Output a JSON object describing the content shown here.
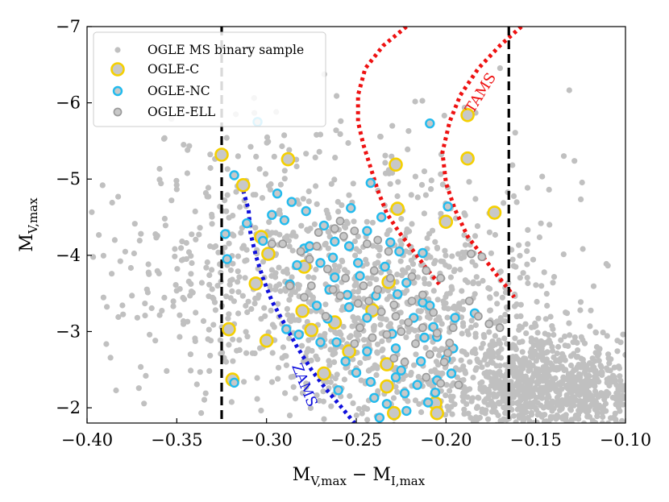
{
  "chart_data": {
    "type": "scatter",
    "xlabel": "M_V,max − M_I,max",
    "ylabel": "M_V,max",
    "xlim": [
      -0.4,
      -0.1
    ],
    "ylim": [
      -1.8,
      -7.0
    ],
    "y_inverted": true,
    "x_ticks": [
      -0.4,
      -0.35,
      -0.3,
      -0.25,
      -0.2,
      -0.15,
      -0.1
    ],
    "x_tick_labels": [
      "−0.40",
      "−0.35",
      "−0.30",
      "−0.25",
      "−0.20",
      "−0.15",
      "−0.10"
    ],
    "y_ticks": [
      -7,
      -6,
      -5,
      -4,
      -3,
      -2
    ],
    "y_tick_labels": [
      "−7",
      "−6",
      "−5",
      "−4",
      "−3",
      "−2"
    ],
    "legend_position": "top-left",
    "legend": [
      {
        "label": "OGLE MS binary sample",
        "marker": "small-grey-dot"
      },
      {
        "label": "OGLE-C",
        "marker": "yellow-ring"
      },
      {
        "label": "OGLE-NC",
        "marker": "cyan-ring"
      },
      {
        "label": "OGLE-ELL",
        "marker": "grey-ring"
      }
    ],
    "vertical_lines": [
      {
        "x": -0.325,
        "style": "dashed",
        "color": "#000000"
      },
      {
        "x": -0.165,
        "style": "dashed",
        "color": "#000000"
      }
    ],
    "curves": [
      {
        "name": "ZAMS",
        "label": "ZAMS",
        "color": "#1010dd",
        "style": "dotted",
        "points": [
          [
            -0.313,
            -4.85
          ],
          [
            -0.31,
            -4.6
          ],
          [
            -0.309,
            -4.3
          ],
          [
            -0.306,
            -4.0
          ],
          [
            -0.302,
            -3.7
          ],
          [
            -0.297,
            -3.4
          ],
          [
            -0.29,
            -3.1
          ],
          [
            -0.283,
            -2.8
          ],
          [
            -0.275,
            -2.5
          ],
          [
            -0.267,
            -2.25
          ],
          [
            -0.258,
            -2.0
          ],
          [
            -0.251,
            -1.8
          ]
        ]
      },
      {
        "name": "TAMS",
        "label": "TAMS",
        "color": "#ee1111",
        "style": "dotted",
        "points": [
          [
            -0.222,
            -7.0
          ],
          [
            -0.235,
            -6.75
          ],
          [
            -0.245,
            -6.45
          ],
          [
            -0.249,
            -6.1
          ],
          [
            -0.249,
            -5.75
          ],
          [
            -0.246,
            -5.45
          ],
          [
            -0.242,
            -5.15
          ],
          [
            -0.238,
            -4.85
          ],
          [
            -0.233,
            -4.55
          ],
          [
            -0.226,
            -4.3
          ],
          [
            -0.218,
            -4.05
          ],
          [
            -0.21,
            -3.8
          ],
          [
            -0.203,
            -3.6
          ]
        ],
        "points_upper": [
          [
            -0.158,
            -7.0
          ],
          [
            -0.17,
            -6.75
          ],
          [
            -0.182,
            -6.45
          ],
          [
            -0.192,
            -6.1
          ],
          [
            -0.198,
            -5.75
          ],
          [
            -0.202,
            -5.35
          ],
          [
            -0.2,
            -4.95
          ],
          [
            -0.195,
            -4.6
          ],
          [
            -0.188,
            -4.25
          ],
          [
            -0.18,
            -4.0
          ],
          [
            -0.172,
            -3.75
          ],
          [
            -0.165,
            -3.55
          ],
          [
            -0.162,
            -3.45
          ]
        ]
      }
    ],
    "series": [
      {
        "name": "OGLE MS binary sample",
        "color": "#c0c0c0",
        "count": 2200
      },
      {
        "name": "OGLE-C",
        "color": "#f5d000",
        "points": [
          [
            -0.325,
            -5.32
          ],
          [
            -0.313,
            -4.92
          ],
          [
            -0.303,
            -4.24
          ],
          [
            -0.299,
            -4.02
          ],
          [
            -0.288,
            -5.26
          ],
          [
            -0.279,
            -3.85
          ],
          [
            -0.306,
            -3.63
          ],
          [
            -0.321,
            -3.03
          ],
          [
            -0.3,
            -2.88
          ],
          [
            -0.319,
            -2.37
          ],
          [
            -0.268,
            -2.45
          ],
          [
            -0.228,
            -5.19
          ],
          [
            -0.227,
            -4.61
          ],
          [
            -0.2,
            -4.44
          ],
          [
            -0.188,
            -5.84
          ],
          [
            -0.188,
            -5.27
          ],
          [
            -0.173,
            -4.56
          ],
          [
            -0.232,
            -3.65
          ],
          [
            -0.241,
            -3.28
          ],
          [
            -0.262,
            -3.12
          ],
          [
            -0.254,
            -2.74
          ],
          [
            -0.233,
            -2.57
          ],
          [
            -0.233,
            -2.28
          ],
          [
            -0.229,
            -1.93
          ],
          [
            -0.206,
            -2.06
          ],
          [
            -0.205,
            -1.93
          ],
          [
            -0.28,
            -3.27
          ],
          [
            -0.275,
            -3.02
          ]
        ]
      },
      {
        "name": "OGLE-NC",
        "color": "#22bbee",
        "points": [
          [
            -0.305,
            -5.75
          ],
          [
            -0.318,
            -5.05
          ],
          [
            -0.323,
            -4.28
          ],
          [
            -0.322,
            -3.95
          ],
          [
            -0.311,
            -4.42
          ],
          [
            -0.287,
            -3.62
          ],
          [
            -0.265,
            -3.55
          ],
          [
            -0.209,
            -5.73
          ],
          [
            -0.244,
            -3.18
          ],
          [
            -0.227,
            -3.49
          ],
          [
            -0.213,
            -3.38
          ],
          [
            -0.199,
            -4.64
          ],
          [
            -0.23,
            -2.97
          ],
          [
            -0.212,
            -2.92
          ],
          [
            -0.256,
            -2.61
          ],
          [
            -0.228,
            -2.78
          ],
          [
            -0.2,
            -2.64
          ],
          [
            -0.225,
            -2.49
          ],
          [
            -0.216,
            -2.3
          ],
          [
            -0.24,
            -2.13
          ],
          [
            -0.21,
            -2.07
          ],
          [
            -0.196,
            -2.78
          ],
          [
            -0.223,
            -2.19
          ],
          [
            -0.237,
            -1.87
          ],
          [
            -0.263,
            -3.97
          ],
          [
            -0.254,
            -3.32
          ],
          [
            -0.249,
            -3.9
          ],
          [
            -0.206,
            -2.2
          ],
          [
            -0.222,
            -1.96
          ],
          [
            -0.184,
            -3.24
          ],
          [
            -0.318,
            -2.33
          ],
          [
            -0.279,
            -4.09
          ],
          [
            -0.27,
            -2.86
          ],
          [
            -0.231,
            -4.17
          ],
          [
            -0.294,
            -4.81
          ],
          [
            -0.302,
            -4.19
          ],
          [
            -0.297,
            -4.53
          ],
          [
            -0.286,
            -4.7
          ],
          [
            -0.29,
            -4.46
          ],
          [
            -0.278,
            -4.58
          ],
          [
            -0.276,
            -4.12
          ],
          [
            -0.283,
            -3.87
          ],
          [
            -0.27,
            -3.9
          ],
          [
            -0.262,
            -3.71
          ],
          [
            -0.255,
            -3.48
          ],
          [
            -0.266,
            -3.17
          ],
          [
            -0.248,
            -3.73
          ],
          [
            -0.239,
            -3.47
          ],
          [
            -0.234,
            -3.85
          ],
          [
            -0.222,
            -3.64
          ],
          [
            -0.218,
            -3.18
          ],
          [
            -0.209,
            -3.34
          ],
          [
            -0.205,
            -2.93
          ],
          [
            -0.244,
            -2.74
          ],
          [
            -0.25,
            -2.46
          ],
          [
            -0.242,
            -2.34
          ],
          [
            -0.261,
            -2.86
          ],
          [
            -0.214,
            -2.61
          ],
          [
            -0.233,
            -2.05
          ],
          [
            -0.205,
            -2.36
          ],
          [
            -0.197,
            -2.45
          ],
          [
            -0.207,
            -3.06
          ],
          [
            -0.195,
            -3.18
          ],
          [
            -0.289,
            -3.03
          ],
          [
            -0.254,
            -4.12
          ],
          [
            -0.244,
            -4.32
          ],
          [
            -0.236,
            -4.5
          ],
          [
            -0.253,
            -4.62
          ],
          [
            -0.242,
            -4.95
          ],
          [
            -0.226,
            -4.05
          ],
          [
            -0.213,
            -4.03
          ],
          [
            -0.228,
            -2.4
          ],
          [
            -0.26,
            -2.23
          ],
          [
            -0.282,
            -2.96
          ],
          [
            -0.272,
            -3.34
          ],
          [
            -0.268,
            -4.39
          ],
          [
            -0.262,
            -4.18
          ]
        ]
      },
      {
        "name": "OGLE-ELL",
        "color": "#999999",
        "points": [
          [
            -0.297,
            -4.15
          ],
          [
            -0.291,
            -4.15
          ],
          [
            -0.272,
            -4.12
          ],
          [
            -0.262,
            -4.35
          ],
          [
            -0.257,
            -4.25
          ],
          [
            -0.251,
            -4.32
          ],
          [
            -0.244,
            -4.15
          ],
          [
            -0.238,
            -4.2
          ],
          [
            -0.232,
            -4.05
          ],
          [
            -0.219,
            -3.72
          ],
          [
            -0.211,
            -3.8
          ],
          [
            -0.203,
            -3.7
          ],
          [
            -0.186,
            -4.02
          ],
          [
            -0.18,
            -3.98
          ],
          [
            -0.275,
            -3.6
          ],
          [
            -0.263,
            -3.55
          ],
          [
            -0.259,
            -3.47
          ],
          [
            -0.249,
            -3.37
          ],
          [
            -0.243,
            -3.4
          ],
          [
            -0.236,
            -3.26
          ],
          [
            -0.228,
            -3.2
          ],
          [
            -0.221,
            -3.12
          ],
          [
            -0.213,
            -3.05
          ],
          [
            -0.205,
            -2.98
          ],
          [
            -0.198,
            -2.85
          ],
          [
            -0.248,
            -3.05
          ],
          [
            -0.241,
            -2.92
          ],
          [
            -0.233,
            -2.96
          ],
          [
            -0.225,
            -3.0
          ],
          [
            -0.217,
            -2.84
          ],
          [
            -0.209,
            -2.7
          ],
          [
            -0.201,
            -2.6
          ],
          [
            -0.211,
            -2.4
          ],
          [
            -0.203,
            -2.32
          ],
          [
            -0.193,
            -2.3
          ],
          [
            -0.182,
            -3.2
          ],
          [
            -0.176,
            -3.1
          ],
          [
            -0.17,
            -3.05
          ],
          [
            -0.267,
            -3.2
          ],
          [
            -0.279,
            -3.45
          ],
          [
            -0.287,
            -3.6
          ],
          [
            -0.271,
            -4.3
          ],
          [
            -0.281,
            -4.05
          ],
          [
            -0.256,
            -3.7
          ],
          [
            -0.246,
            -3.6
          ],
          [
            -0.238,
            -3.55
          ],
          [
            -0.229,
            -3.35
          ],
          [
            -0.219,
            -3.4
          ],
          [
            -0.213,
            -3.48
          ],
          [
            -0.207,
            -3.25
          ],
          [
            -0.229,
            -2.65
          ],
          [
            -0.223,
            -2.6
          ],
          [
            -0.251,
            -2.84
          ],
          [
            -0.196,
            -3.05
          ],
          [
            -0.187,
            -3.4
          ],
          [
            -0.259,
            -4.45
          ],
          [
            -0.276,
            -3.95
          ],
          [
            -0.266,
            -3.82
          ],
          [
            -0.24,
            -3.8
          ],
          [
            -0.231,
            -3.7
          ],
          [
            -0.199,
            -2.72
          ]
        ]
      }
    ]
  }
}
